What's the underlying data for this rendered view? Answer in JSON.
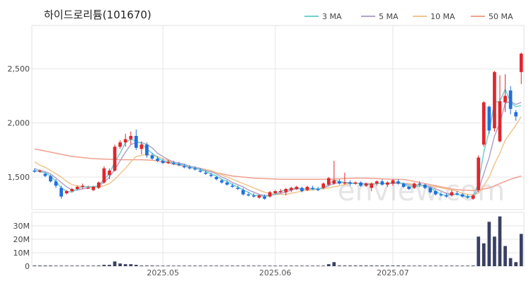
{
  "title": "하이드로리튬(101670)",
  "watermark": "enview.com",
  "legend": [
    {
      "name": "3 MA",
      "color": "#6fcfcf"
    },
    {
      "name": "5 MA",
      "color": "#b3a3c9"
    },
    {
      "name": "10 MA",
      "color": "#f0c58d"
    },
    {
      "name": "50 MA",
      "color": "#f2a08f"
    }
  ],
  "colors": {
    "up": "#e0262b",
    "down": "#1f6fdf",
    "volume": "#3a3f63",
    "grid": "#e6e6e6"
  },
  "price_axis": {
    "ticks": [
      "1,500",
      "2,000",
      "2,500"
    ],
    "tick_values": [
      1500,
      2000,
      2500
    ],
    "range": [
      1200,
      2900
    ]
  },
  "volume_axis": {
    "ticks": [
      "0",
      "10M",
      "20M",
      "30M"
    ],
    "tick_values": [
      0,
      10,
      20,
      30
    ],
    "range": [
      0,
      40
    ]
  },
  "x_axis": {
    "labels": [
      "2025.05",
      "2025.06",
      "2025.07"
    ],
    "label_index": [
      24,
      45,
      67
    ]
  },
  "chart_data": {
    "type": "candlestick",
    "candles": [
      [
        1560,
        1580,
        1540,
        1550
      ],
      [
        1550,
        1570,
        1540,
        1560
      ],
      [
        1530,
        1540,
        1500,
        1510
      ],
      [
        1510,
        1520,
        1450,
        1460
      ],
      [
        1460,
        1480,
        1400,
        1420
      ],
      [
        1400,
        1420,
        1300,
        1320
      ],
      [
        1350,
        1380,
        1340,
        1370
      ],
      [
        1370,
        1400,
        1360,
        1390
      ],
      [
        1390,
        1420,
        1380,
        1410
      ],
      [
        1410,
        1440,
        1390,
        1420
      ],
      [
        1400,
        1420,
        1390,
        1400
      ],
      [
        1380,
        1420,
        1370,
        1410
      ],
      [
        1400,
        1460,
        1390,
        1450
      ],
      [
        1450,
        1600,
        1440,
        1580
      ],
      [
        1520,
        1580,
        1480,
        1560
      ],
      [
        1560,
        1800,
        1550,
        1780
      ],
      [
        1780,
        1840,
        1760,
        1820
      ],
      [
        1820,
        1900,
        1780,
        1850
      ],
      [
        1850,
        1920,
        1800,
        1880
      ],
      [
        1880,
        1940,
        1750,
        1770
      ],
      [
        1760,
        1830,
        1710,
        1800
      ],
      [
        1800,
        1820,
        1680,
        1700
      ],
      [
        1700,
        1720,
        1660,
        1670
      ],
      [
        1670,
        1690,
        1640,
        1650
      ],
      [
        1650,
        1670,
        1620,
        1630
      ],
      [
        1630,
        1660,
        1620,
        1640
      ],
      [
        1630,
        1650,
        1610,
        1620
      ],
      [
        1620,
        1640,
        1600,
        1610
      ],
      [
        1600,
        1620,
        1580,
        1590
      ],
      [
        1590,
        1610,
        1570,
        1580
      ],
      [
        1580,
        1600,
        1560,
        1570
      ],
      [
        1560,
        1580,
        1540,
        1550
      ],
      [
        1540,
        1560,
        1520,
        1530
      ],
      [
        1520,
        1540,
        1500,
        1510
      ],
      [
        1500,
        1510,
        1470,
        1480
      ],
      [
        1470,
        1480,
        1440,
        1450
      ],
      [
        1450,
        1470,
        1420,
        1430
      ],
      [
        1420,
        1440,
        1400,
        1410
      ],
      [
        1400,
        1420,
        1380,
        1390
      ],
      [
        1380,
        1400,
        1330,
        1340
      ],
      [
        1340,
        1360,
        1320,
        1330
      ],
      [
        1330,
        1350,
        1310,
        1320
      ],
      [
        1310,
        1340,
        1300,
        1330
      ],
      [
        1320,
        1340,
        1290,
        1300
      ],
      [
        1320,
        1370,
        1310,
        1360
      ],
      [
        1350,
        1380,
        1340,
        1370
      ],
      [
        1360,
        1390,
        1350,
        1370
      ],
      [
        1360,
        1400,
        1330,
        1390
      ],
      [
        1380,
        1410,
        1360,
        1400
      ],
      [
        1390,
        1420,
        1380,
        1410
      ],
      [
        1400,
        1410,
        1360,
        1370
      ],
      [
        1380,
        1420,
        1370,
        1410
      ],
      [
        1400,
        1420,
        1380,
        1390
      ],
      [
        1390,
        1410,
        1370,
        1380
      ],
      [
        1400,
        1450,
        1390,
        1440
      ],
      [
        1430,
        1500,
        1420,
        1490
      ],
      [
        1440,
        1650,
        1430,
        1470
      ],
      [
        1460,
        1480,
        1430,
        1440
      ],
      [
        1440,
        1540,
        1430,
        1450
      ],
      [
        1450,
        1470,
        1420,
        1440
      ],
      [
        1440,
        1460,
        1430,
        1450
      ],
      [
        1450,
        1460,
        1410,
        1420
      ],
      [
        1420,
        1450,
        1410,
        1440
      ],
      [
        1400,
        1450,
        1370,
        1440
      ],
      [
        1440,
        1470,
        1420,
        1460
      ],
      [
        1460,
        1480,
        1420,
        1430
      ],
      [
        1430,
        1460,
        1410,
        1450
      ],
      [
        1440,
        1480,
        1420,
        1470
      ],
      [
        1460,
        1480,
        1430,
        1440
      ],
      [
        1440,
        1450,
        1400,
        1410
      ],
      [
        1410,
        1420,
        1380,
        1390
      ],
      [
        1400,
        1450,
        1390,
        1440
      ],
      [
        1440,
        1460,
        1410,
        1430
      ],
      [
        1430,
        1440,
        1390,
        1400
      ],
      [
        1400,
        1410,
        1350,
        1360
      ],
      [
        1370,
        1380,
        1330,
        1340
      ],
      [
        1340,
        1360,
        1320,
        1330
      ],
      [
        1330,
        1350,
        1310,
        1320
      ],
      [
        1330,
        1380,
        1320,
        1360
      ],
      [
        1350,
        1370,
        1330,
        1340
      ],
      [
        1340,
        1350,
        1310,
        1320
      ],
      [
        1320,
        1340,
        1300,
        1310
      ],
      [
        1300,
        1340,
        1290,
        1330
      ],
      [
        1380,
        1700,
        1360,
        1680
      ],
      [
        1800,
        2200,
        1780,
        2190
      ],
      [
        2150,
        2160,
        1900,
        1930
      ],
      [
        1950,
        2480,
        1920,
        2470
      ],
      [
        1830,
        2440,
        1820,
        2200
      ],
      [
        2190,
        2450,
        2100,
        2250
      ],
      [
        2300,
        2340,
        2080,
        2130
      ],
      [
        2100,
        2120,
        2020,
        2060
      ],
      [
        2470,
        2650,
        2360,
        2640
      ]
    ],
    "ma": {
      "3 MA": [
        1560,
        1550,
        1540,
        1510,
        1460,
        1400,
        1370,
        1360,
        1390,
        1410,
        1410,
        1410,
        1420,
        1480,
        1530,
        1640,
        1720,
        1820,
        1850,
        1830,
        1810,
        1760,
        1720,
        1680,
        1650,
        1640,
        1630,
        1620,
        1610,
        1590,
        1580,
        1570,
        1550,
        1530,
        1510,
        1480,
        1460,
        1430,
        1410,
        1380,
        1360,
        1330,
        1330,
        1320,
        1330,
        1340,
        1370,
        1380,
        1390,
        1400,
        1390,
        1390,
        1390,
        1390,
        1400,
        1430,
        1470,
        1460,
        1450,
        1440,
        1440,
        1440,
        1430,
        1430,
        1440,
        1440,
        1440,
        1450,
        1450,
        1440,
        1410,
        1410,
        1420,
        1420,
        1400,
        1370,
        1340,
        1330,
        1340,
        1340,
        1330,
        1320,
        1320,
        1440,
        1730,
        1920,
        2190,
        2200,
        2310,
        2190,
        2150,
        2160
      ],
      "5 MA": [
        1580,
        1560,
        1550,
        1530,
        1490,
        1450,
        1410,
        1380,
        1380,
        1390,
        1400,
        1410,
        1420,
        1450,
        1500,
        1570,
        1650,
        1730,
        1800,
        1820,
        1820,
        1800,
        1770,
        1720,
        1690,
        1660,
        1640,
        1630,
        1620,
        1600,
        1590,
        1580,
        1560,
        1550,
        1530,
        1500,
        1480,
        1450,
        1430,
        1410,
        1380,
        1360,
        1340,
        1330,
        1330,
        1340,
        1350,
        1360,
        1380,
        1390,
        1390,
        1390,
        1390,
        1390,
        1400,
        1420,
        1440,
        1450,
        1450,
        1450,
        1440,
        1440,
        1440,
        1430,
        1440,
        1440,
        1440,
        1440,
        1450,
        1440,
        1430,
        1420,
        1420,
        1420,
        1410,
        1390,
        1370,
        1350,
        1340,
        1340,
        1330,
        1320,
        1320,
        1380,
        1530,
        1680,
        1880,
        2000,
        2180,
        2200,
        2170,
        2190
      ],
      "10 MA": [
        1640,
        1610,
        1590,
        1560,
        1530,
        1500,
        1460,
        1430,
        1420,
        1410,
        1410,
        1410,
        1410,
        1420,
        1440,
        1480,
        1530,
        1580,
        1640,
        1690,
        1700,
        1710,
        1700,
        1690,
        1670,
        1650,
        1630,
        1620,
        1610,
        1600,
        1590,
        1580,
        1570,
        1560,
        1540,
        1520,
        1500,
        1480,
        1460,
        1440,
        1420,
        1400,
        1380,
        1360,
        1350,
        1340,
        1340,
        1340,
        1350,
        1360,
        1370,
        1380,
        1380,
        1390,
        1390,
        1400,
        1410,
        1420,
        1430,
        1440,
        1440,
        1440,
        1440,
        1440,
        1440,
        1440,
        1440,
        1440,
        1440,
        1440,
        1440,
        1430,
        1430,
        1420,
        1420,
        1410,
        1400,
        1390,
        1380,
        1370,
        1350,
        1340,
        1340,
        1350,
        1420,
        1500,
        1620,
        1720,
        1840,
        1910,
        1980,
        2060
      ],
      "50 MA": [
        1760,
        1750,
        1740,
        1730,
        1720,
        1710,
        1700,
        1690,
        1685,
        1680,
        1675,
        1670,
        1668,
        1666,
        1664,
        1662,
        1660,
        1660,
        1660,
        1660,
        1660,
        1658,
        1655,
        1650,
        1640,
        1630,
        1620,
        1610,
        1600,
        1590,
        1580,
        1570,
        1560,
        1550,
        1540,
        1530,
        1520,
        1510,
        1505,
        1500,
        1495,
        1490,
        1488,
        1486,
        1484,
        1482,
        1480,
        1480,
        1480,
        1480,
        1480,
        1480,
        1480,
        1480,
        1480,
        1480,
        1482,
        1484,
        1486,
        1488,
        1490,
        1490,
        1490,
        1488,
        1486,
        1484,
        1482,
        1480,
        1480,
        1478,
        1470,
        1460,
        1450,
        1440,
        1430,
        1420,
        1410,
        1400,
        1390,
        1385,
        1380,
        1378,
        1376,
        1380,
        1390,
        1400,
        1420,
        1440,
        1460,
        1480,
        1495,
        1510
      ]
    },
    "volume_m": [
      0.5,
      0.5,
      0.5,
      0.5,
      0.4,
      0.4,
      0.4,
      0.4,
      0.4,
      0.4,
      0.4,
      0.4,
      0.5,
      1,
      1,
      3.5,
      2,
      1.5,
      1.5,
      1,
      0.5,
      0.5,
      0.5,
      0.4,
      0.4,
      0.4,
      0.4,
      0.4,
      0.4,
      0.4,
      0.4,
      0.4,
      0.4,
      0.4,
      0.4,
      0.4,
      0.4,
      0.4,
      0.4,
      0.4,
      0.4,
      0.4,
      0.4,
      0.4,
      0.4,
      0.4,
      0.4,
      0.4,
      0.4,
      0.4,
      0.4,
      0.4,
      0.4,
      0.4,
      0.4,
      1.5,
      3,
      0.5,
      0.5,
      0.5,
      0.5,
      0.5,
      0.5,
      0.5,
      0.5,
      0.5,
      0.5,
      0.5,
      0.5,
      0.5,
      0.4,
      0.4,
      0.4,
      0.4,
      0.4,
      0.4,
      0.4,
      0.4,
      0.4,
      0.4,
      0.4,
      0.4,
      0.5,
      22,
      17,
      33,
      22,
      37,
      15,
      6,
      3,
      24
    ],
    "title": "하이드로리튬(101670)"
  }
}
